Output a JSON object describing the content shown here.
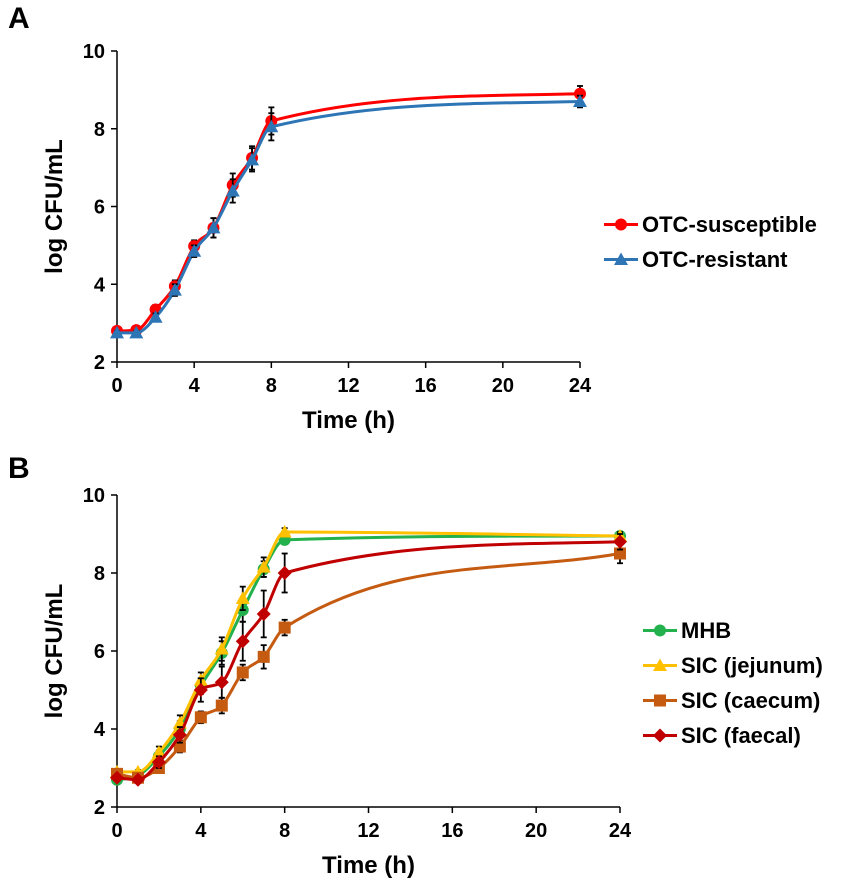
{
  "chart_data": [
    {
      "panel": "A",
      "type": "line",
      "xlabel": "Time (h)",
      "ylabel": "log CFU/mL",
      "xlim": [
        0,
        24
      ],
      "ylim": [
        2,
        10
      ],
      "xticks": [
        0,
        4,
        8,
        12,
        16,
        20,
        24
      ],
      "yticks": [
        2,
        4,
        6,
        8,
        10
      ],
      "legend_position": "right",
      "series": [
        {
          "name": "OTC-susceptible",
          "color": "#ff0000",
          "marker": "circle",
          "x": [
            0,
            1,
            2,
            3,
            4,
            5,
            6,
            7,
            8,
            24
          ],
          "y": [
            2.8,
            2.82,
            3.35,
            3.95,
            4.98,
            5.45,
            6.55,
            7.25,
            8.2,
            8.9
          ],
          "err": [
            0.05,
            0.05,
            0.12,
            0.15,
            0.15,
            0.25,
            0.3,
            0.3,
            0.35,
            0.2
          ]
        },
        {
          "name": "OTC-resistant",
          "color": "#2e75b6",
          "marker": "triangle",
          "x": [
            0,
            1,
            2,
            3,
            4,
            5,
            6,
            7,
            8,
            24
          ],
          "y": [
            2.75,
            2.75,
            3.15,
            3.85,
            4.85,
            5.45,
            6.4,
            7.2,
            8.05,
            8.7
          ],
          "err": [
            0.05,
            0.05,
            0.1,
            0.15,
            0.15,
            0.25,
            0.3,
            0.3,
            0.35,
            0.15
          ]
        }
      ]
    },
    {
      "panel": "B",
      "type": "line",
      "xlabel": "Time (h)",
      "ylabel": "log CFU/mL",
      "xlim": [
        0,
        24
      ],
      "ylim": [
        2,
        10
      ],
      "xticks": [
        0,
        4,
        8,
        12,
        16,
        20,
        24
      ],
      "yticks": [
        2,
        4,
        6,
        8,
        10
      ],
      "legend_position": "right",
      "series": [
        {
          "name": "MHB",
          "color": "#22b14c",
          "marker": "circle",
          "x": [
            0,
            1,
            2,
            3,
            4,
            5,
            6,
            7,
            8,
            24
          ],
          "y": [
            2.7,
            2.8,
            3.3,
            4.0,
            5.1,
            5.95,
            7.05,
            8.1,
            8.85,
            8.95
          ],
          "err": [
            0.05,
            0.05,
            0.15,
            0.2,
            0.2,
            0.3,
            0.3,
            0.2,
            0.1,
            0.1
          ]
        },
        {
          "name": "SIC (jejunum)",
          "color": "#ffc000",
          "marker": "triangle",
          "x": [
            0,
            1,
            2,
            3,
            4,
            5,
            6,
            7,
            8,
            24
          ],
          "y": [
            2.9,
            2.9,
            3.4,
            4.15,
            5.25,
            6.05,
            7.35,
            8.15,
            9.05,
            8.95
          ],
          "err": [
            0.05,
            0.05,
            0.15,
            0.2,
            0.2,
            0.3,
            0.3,
            0.25,
            0.1,
            0.1
          ]
        },
        {
          "name": "SIC (caecum)",
          "color": "#c55a11",
          "marker": "square",
          "x": [
            0,
            1,
            2,
            3,
            4,
            5,
            6,
            7,
            8,
            24
          ],
          "y": [
            2.85,
            2.75,
            3.0,
            3.55,
            4.3,
            4.6,
            5.45,
            5.85,
            6.6,
            8.5
          ],
          "err": [
            0.05,
            0.05,
            0.12,
            0.15,
            0.15,
            0.2,
            0.2,
            0.3,
            0.2,
            0.25
          ]
        },
        {
          "name": "SIC (faecal)",
          "color": "#c00000",
          "marker": "diamond",
          "x": [
            0,
            1,
            2,
            3,
            4,
            5,
            6,
            7,
            8,
            24
          ],
          "y": [
            2.75,
            2.7,
            3.15,
            3.85,
            5.0,
            5.2,
            6.25,
            6.95,
            8.0,
            8.8
          ],
          "err": [
            0.05,
            0.05,
            0.15,
            0.2,
            0.3,
            0.4,
            0.5,
            0.6,
            0.5,
            0.2
          ]
        }
      ]
    }
  ]
}
